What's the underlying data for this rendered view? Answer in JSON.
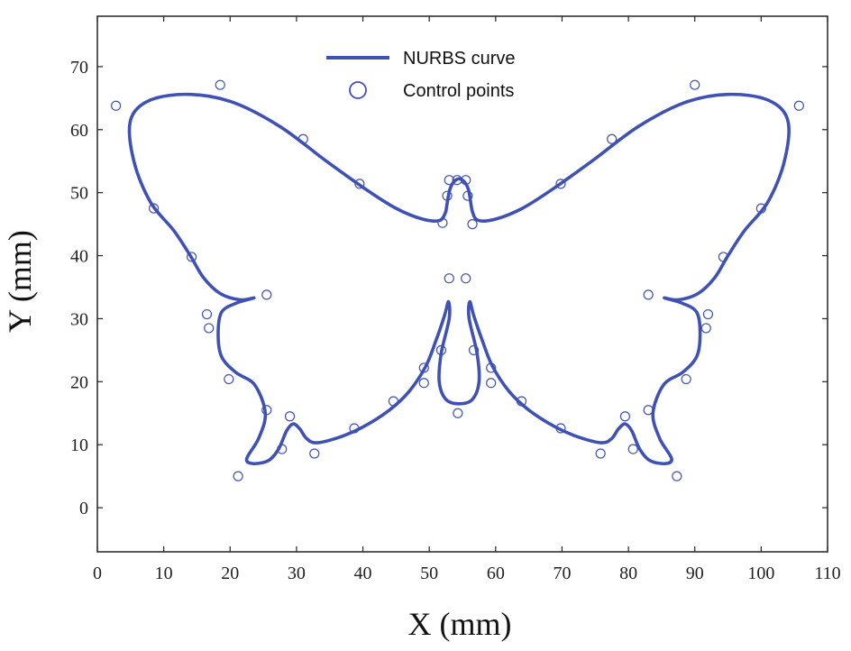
{
  "chart_data": {
    "type": "scatter",
    "xlabel": "X (mm)",
    "ylabel": "Y (mm)",
    "xlim": [
      0,
      110
    ],
    "ylim": [
      -7,
      78
    ],
    "xticks": [
      0,
      10,
      20,
      30,
      40,
      50,
      60,
      70,
      80,
      90,
      100,
      110
    ],
    "yticks": [
      0,
      10,
      20,
      30,
      40,
      50,
      60,
      70
    ],
    "grid": false,
    "legend_position": "top-center",
    "color": "#3F51B5",
    "series": [
      {
        "name": "NURBS curve",
        "kind": "line",
        "points": [
          [
            52.5,
            47.0
          ],
          [
            51.6,
            45.6
          ],
          [
            49.0,
            45.8
          ],
          [
            45.0,
            47.5
          ],
          [
            40.5,
            50.5
          ],
          [
            34.5,
            55.0
          ],
          [
            27.5,
            60.5
          ],
          [
            20.5,
            64.3
          ],
          [
            14.0,
            65.6
          ],
          [
            8.0,
            64.7
          ],
          [
            5.0,
            61.5
          ],
          [
            5.5,
            55.0
          ],
          [
            8.0,
            48.5
          ],
          [
            11.5,
            44.0
          ],
          [
            14.0,
            40.0
          ],
          [
            16.0,
            36.5
          ],
          [
            18.5,
            34.0
          ],
          [
            21.5,
            33.0
          ],
          [
            23.6,
            33.3
          ],
          [
            21.0,
            32.5
          ],
          [
            18.7,
            31.0
          ],
          [
            18.2,
            27.5
          ],
          [
            18.7,
            24.0
          ],
          [
            20.8,
            21.5
          ],
          [
            23.7,
            19.5
          ],
          [
            25.3,
            15.0
          ],
          [
            24.3,
            11.0
          ],
          [
            22.5,
            7.8
          ],
          [
            23.5,
            7.0
          ],
          [
            25.8,
            7.5
          ],
          [
            27.3,
            9.3
          ],
          [
            28.5,
            12.2
          ],
          [
            29.5,
            13.3
          ],
          [
            30.5,
            12.5
          ],
          [
            31.5,
            11.0
          ],
          [
            33.0,
            10.3
          ],
          [
            36.5,
            11.2
          ],
          [
            40.0,
            12.8
          ],
          [
            44.0,
            15.5
          ],
          [
            47.0,
            18.5
          ],
          [
            49.5,
            22.5
          ],
          [
            51.0,
            26.5
          ],
          [
            52.3,
            30.5
          ],
          [
            52.9,
            32.7
          ],
          [
            53.0,
            30.0
          ],
          [
            51.8,
            24.5
          ],
          [
            51.5,
            20.0
          ],
          [
            52.5,
            17.2
          ],
          [
            54.5,
            16.5
          ],
          [
            56.5,
            17.2
          ],
          [
            57.5,
            20.0
          ],
          [
            57.2,
            24.5
          ],
          [
            56.0,
            30.0
          ],
          [
            56.1,
            32.7
          ],
          [
            56.7,
            30.5
          ],
          [
            58.0,
            26.5
          ],
          [
            59.5,
            22.5
          ],
          [
            62.0,
            18.5
          ],
          [
            65.0,
            15.5
          ],
          [
            69.0,
            12.8
          ],
          [
            72.5,
            11.2
          ],
          [
            76.0,
            10.3
          ],
          [
            77.5,
            11.0
          ],
          [
            78.5,
            12.5
          ],
          [
            79.5,
            13.3
          ],
          [
            80.5,
            12.2
          ],
          [
            81.7,
            9.3
          ],
          [
            83.2,
            7.5
          ],
          [
            85.5,
            7.0
          ],
          [
            86.5,
            7.8
          ],
          [
            84.7,
            11.0
          ],
          [
            83.7,
            15.0
          ],
          [
            85.3,
            19.5
          ],
          [
            88.2,
            21.5
          ],
          [
            90.3,
            24.0
          ],
          [
            90.8,
            27.5
          ],
          [
            90.3,
            31.0
          ],
          [
            88.0,
            32.5
          ],
          [
            85.4,
            33.3
          ],
          [
            87.5,
            33.0
          ],
          [
            90.5,
            34.0
          ],
          [
            93.0,
            36.5
          ],
          [
            95.0,
            40.0
          ],
          [
            97.5,
            44.0
          ],
          [
            101.0,
            48.5
          ],
          [
            103.5,
            55.0
          ],
          [
            104.0,
            61.5
          ],
          [
            101.0,
            64.7
          ],
          [
            95.0,
            65.6
          ],
          [
            88.5,
            64.3
          ],
          [
            81.5,
            60.5
          ],
          [
            74.5,
            55.0
          ],
          [
            68.5,
            50.5
          ],
          [
            64.0,
            47.5
          ],
          [
            60.0,
            45.8
          ],
          [
            57.4,
            45.6
          ],
          [
            56.5,
            47.0
          ],
          [
            55.9,
            50.5
          ],
          [
            55.0,
            52.0
          ],
          [
            54.0,
            52.0
          ],
          [
            53.1,
            50.5
          ],
          [
            52.5,
            47.0
          ]
        ]
      },
      {
        "name": "Control points",
        "kind": "markers",
        "points": [
          [
            52.0,
            45.2
          ],
          [
            39.5,
            51.4
          ],
          [
            31.0,
            58.5
          ],
          [
            18.5,
            67.1
          ],
          [
            2.8,
            63.8
          ],
          [
            8.5,
            47.5
          ],
          [
            14.2,
            39.8
          ],
          [
            25.5,
            33.8
          ],
          [
            16.5,
            30.7
          ],
          [
            16.8,
            28.5
          ],
          [
            19.8,
            20.4
          ],
          [
            25.5,
            15.5
          ],
          [
            21.2,
            5.0
          ],
          [
            27.8,
            9.3
          ],
          [
            29.0,
            14.5
          ],
          [
            32.7,
            8.6
          ],
          [
            38.7,
            12.6
          ],
          [
            44.6,
            16.9
          ],
          [
            49.2,
            22.2
          ],
          [
            49.2,
            19.8
          ],
          [
            51.8,
            25.0
          ],
          [
            53.0,
            36.4
          ],
          [
            54.3,
            15.0
          ],
          [
            55.5,
            36.4
          ],
          [
            56.7,
            25.0
          ],
          [
            59.3,
            19.8
          ],
          [
            59.3,
            22.2
          ],
          [
            63.9,
            16.9
          ],
          [
            69.8,
            12.6
          ],
          [
            75.8,
            8.6
          ],
          [
            79.5,
            14.5
          ],
          [
            80.7,
            9.3
          ],
          [
            87.3,
            5.0
          ],
          [
            83.0,
            15.5
          ],
          [
            88.7,
            20.4
          ],
          [
            91.7,
            28.5
          ],
          [
            92.0,
            30.7
          ],
          [
            83.0,
            33.8
          ],
          [
            94.3,
            39.8
          ],
          [
            100.0,
            47.5
          ],
          [
            105.7,
            63.8
          ],
          [
            90.0,
            67.1
          ],
          [
            77.5,
            58.5
          ],
          [
            69.8,
            51.4
          ],
          [
            56.5,
            45.0
          ],
          [
            55.8,
            49.5
          ],
          [
            55.5,
            52.0
          ],
          [
            54.2,
            52.0
          ],
          [
            53.0,
            52.0
          ],
          [
            52.7,
            49.5
          ]
        ]
      }
    ]
  }
}
